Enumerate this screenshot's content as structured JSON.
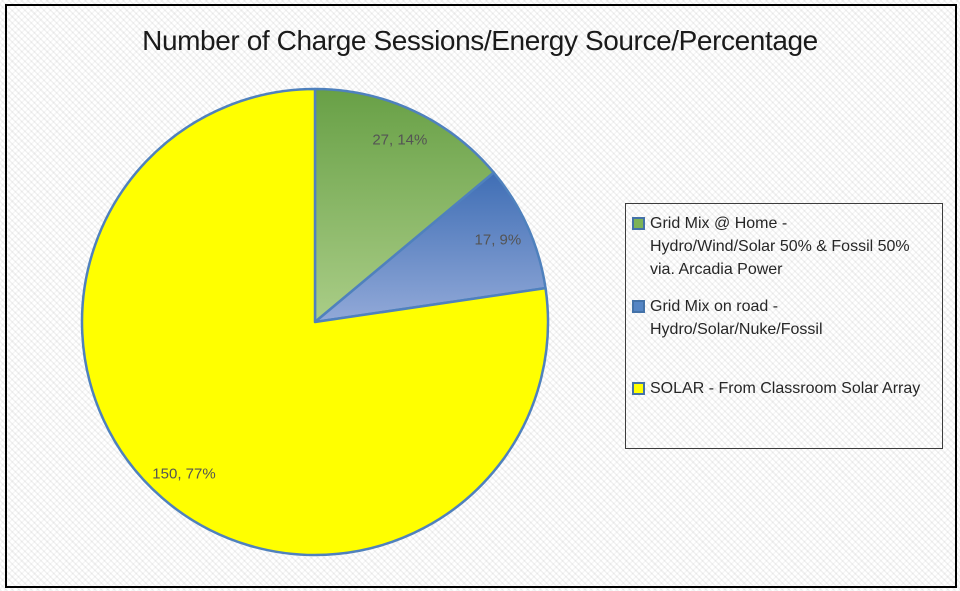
{
  "frame": {
    "border_color": "#000000"
  },
  "chart_data": {
    "type": "pie",
    "title": "Number of Charge Sessions/Energy Source/Percentage",
    "legend_position": "right",
    "start_angle_deg": 0,
    "direction": "clockwise",
    "stroke_color": "#4f81bd",
    "data_label_color": "#545454",
    "legend_swatch_border": "#4472a8",
    "slices": [
      {
        "name": "Grid Mix @ Home - Hydro/Wind/Solar 50% & Fossil 50% via. Arcadia Power",
        "legend_lines": [
          "Grid Mix @ Home -",
          "Hydro/Wind/Solar 50% & Fossil 50%",
          "via. Arcadia Power"
        ],
        "value": 27,
        "percent_label": "14%",
        "data_label": "27, 14%",
        "fill_top": "#68a046",
        "fill_bottom": "#aacd87",
        "swatch_fill": "#7db356"
      },
      {
        "name": "Grid Mix on road - Hydro/Solar/Nuke/Fossil",
        "legend_lines": [
          "Grid Mix on road -",
          "Hydro/Solar/Nuke/Fossil"
        ],
        "value": 17,
        "percent_label": "9%",
        "data_label": "17, 9%",
        "fill_top": "#3f6eb5",
        "fill_bottom": "#92a9d8",
        "swatch_fill": "#5585c4"
      },
      {
        "name": "SOLAR - From Classroom Solar Array",
        "legend_lines": [
          "SOLAR - From Classroom Solar Array"
        ],
        "value": 150,
        "percent_label": "77%",
        "data_label": "150, 77%",
        "fill_top": "#ffff00",
        "fill_bottom": "#ffff00",
        "swatch_fill": "#ffff00"
      }
    ]
  }
}
